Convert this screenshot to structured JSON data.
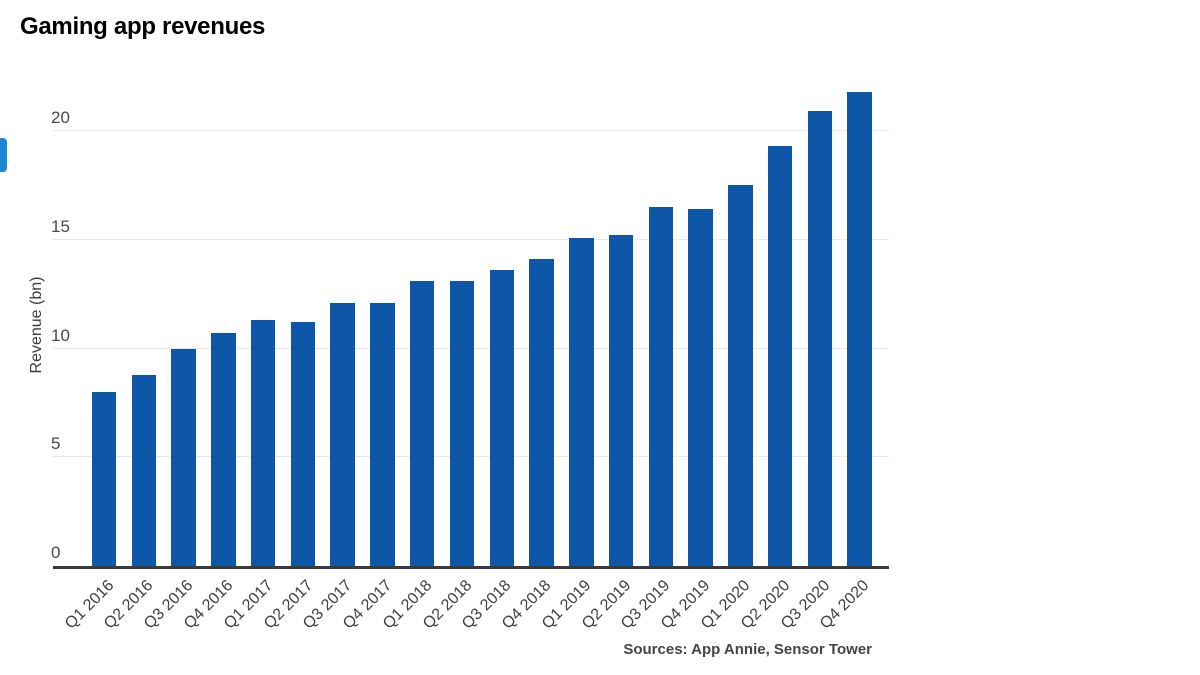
{
  "page": {
    "title": "Gaming app revenues"
  },
  "chart_data": {
    "type": "bar",
    "title": "Gaming app revenues",
    "ylabel": "Revenue (bn)",
    "xlabel": "",
    "categories": [
      "Q1 2016",
      "Q2 2016",
      "Q3 2016",
      "Q4 2016",
      "Q1 2017",
      "Q2 2017",
      "Q3 2017",
      "Q4 2017",
      "Q1 2018",
      "Q2 2018",
      "Q3 2018",
      "Q4 2018",
      "Q1 2019",
      "Q2 2019",
      "Q3 2019",
      "Q4 2019",
      "Q1 2020",
      "Q2 2020",
      "Q3 2020",
      "Q4 2020"
    ],
    "values": [
      8.0,
      8.8,
      10.0,
      10.7,
      11.3,
      11.2,
      12.1,
      12.1,
      13.1,
      13.1,
      13.6,
      14.1,
      15.1,
      15.2,
      16.5,
      16.4,
      17.5,
      19.3,
      20.9,
      21.8
    ],
    "yticks": [
      0,
      5,
      10,
      15,
      20
    ],
    "ylim": [
      0,
      22.4
    ],
    "grid": true,
    "legend": false,
    "bar_color": "#0E56A7",
    "source": "Sources: App Annie, Sensor Tower"
  },
  "colors": {
    "left_tab": "#1C87D2",
    "axis": "#3B3B3B",
    "gridline": "#E9E9E9"
  }
}
